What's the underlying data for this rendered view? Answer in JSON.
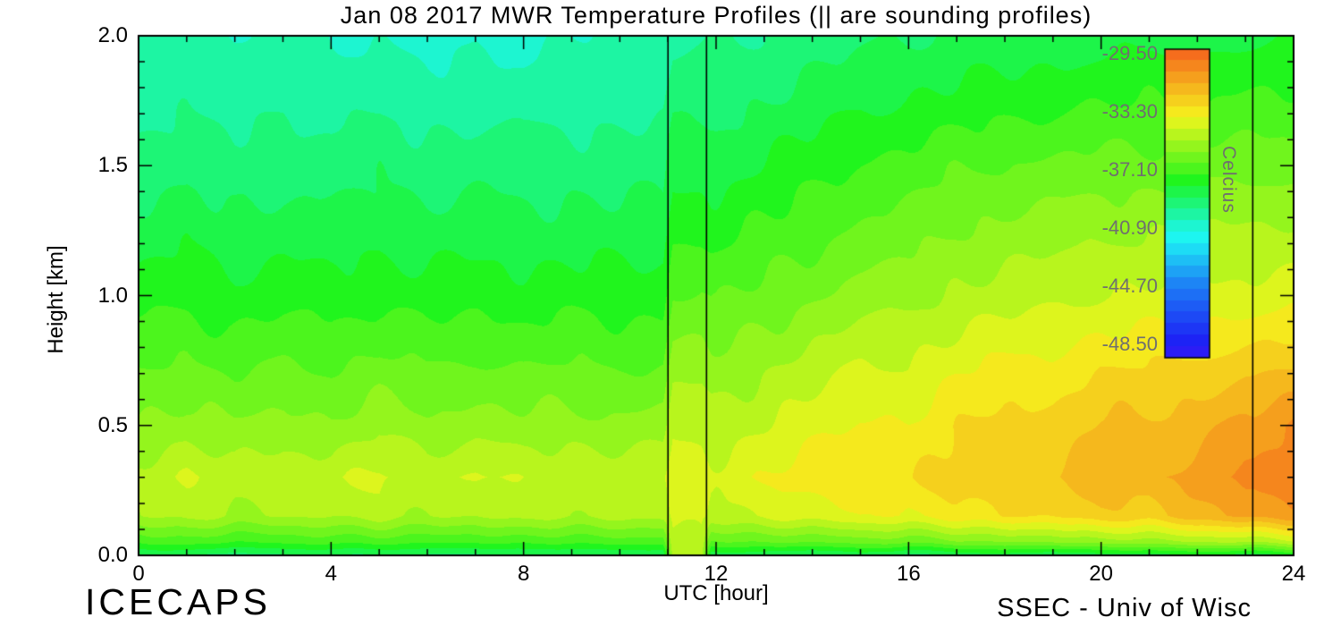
{
  "footer": {
    "left": "ICECAPS",
    "right": "SSEC - Univ of Wisc"
  },
  "colors": {
    "background": "#ffffff",
    "axis": "#000000",
    "text": "#000000",
    "colorbar_text": "#6f6f6f"
  },
  "chart_data": {
    "type": "heatmap",
    "title": "Jan 08 2017 MWR Temperature Profiles (|| are sounding profiles)",
    "xlabel": "UTC [hour]",
    "ylabel": "Height [km]",
    "xlim": [
      0,
      24
    ],
    "ylim": [
      0.0,
      2.0
    ],
    "x_major_ticks": [
      0,
      4,
      8,
      12,
      16,
      20,
      24
    ],
    "x_tick_labels": [
      "0",
      "4",
      "8",
      "12",
      "16",
      "20",
      "24"
    ],
    "x_minor_step": 1,
    "y_major_ticks": [
      0.0,
      0.5,
      1.0,
      1.5,
      2.0
    ],
    "y_tick_labels": [
      "0.0",
      "0.5",
      "1.0",
      "1.5",
      "2.0"
    ],
    "y_minor_step": 0.1,
    "grid_lines": "off",
    "sounding_lines_utc": [
      11.0,
      11.8,
      23.15
    ],
    "colorbar": {
      "label": "Celcius",
      "tick_labels": [
        "-29.50",
        "-33.30",
        "-37.10",
        "-40.90",
        "-44.70",
        "-48.50"
      ],
      "tick_values": [
        -29.5,
        -33.3,
        -37.1,
        -40.9,
        -44.7,
        -48.5
      ],
      "vmax": -29.2,
      "vmin": -49.4,
      "position": "inside-right"
    },
    "contour_step_c": 0.75,
    "colormap_stops": [
      [
        0,
        247
      ],
      [
        0.045,
        240
      ],
      [
        0.233,
        213
      ],
      [
        0.421,
        172
      ],
      [
        0.609,
        108
      ],
      [
        0.797,
        57
      ],
      [
        0.985,
        22
      ],
      [
        1,
        18
      ]
    ],
    "grid": {
      "hours": [
        0,
        1,
        2,
        3,
        4,
        5,
        6,
        7,
        8,
        9,
        10,
        10.9,
        11.1,
        11.4,
        11.7,
        11.9,
        12,
        13,
        14,
        15,
        16,
        17,
        18,
        19,
        20,
        21,
        22,
        23,
        23.2,
        24
      ],
      "heights_km": [
        0.0,
        0.05,
        0.15,
        0.3,
        0.5,
        0.75,
        1.0,
        1.25,
        1.5,
        1.75,
        2.0
      ],
      "temps_c": [
        [
          -39.0,
          -38.8,
          -39.2,
          -38.9,
          -39.1,
          -38.8,
          -39.0,
          -39.2,
          -38.8,
          -39.0,
          -38.9,
          -38.8,
          -34.8,
          -34.8,
          -34.8,
          -38.6,
          -38.6,
          -38.7,
          -39.0,
          -38.5,
          -39.3,
          -38.6,
          -38.4,
          -39.0,
          -38.3,
          -38.5,
          -38.2,
          -38.4,
          -38.4,
          -38.0
        ],
        [
          -37.3,
          -37.0,
          -37.4,
          -37.1,
          -37.3,
          -37.0,
          -37.2,
          -37.4,
          -37.0,
          -37.2,
          -37.1,
          -37.0,
          -34.5,
          -34.5,
          -34.5,
          -36.8,
          -36.8,
          -36.6,
          -36.6,
          -36.2,
          -36.6,
          -36.0,
          -35.8,
          -36.0,
          -35.4,
          -35.5,
          -35.2,
          -35.0,
          -35.0,
          -34.6
        ],
        [
          -35.2,
          -34.9,
          -35.3,
          -35.0,
          -35.2,
          -34.8,
          -35.1,
          -35.2,
          -34.8,
          -35.0,
          -35.0,
          -34.9,
          -34.2,
          -34.2,
          -34.2,
          -34.6,
          -34.6,
          -34.3,
          -34.0,
          -33.6,
          -33.8,
          -33.2,
          -32.8,
          -33.0,
          -32.3,
          -32.4,
          -31.8,
          -31.2,
          -31.2,
          -30.8
        ],
        [
          -34.8,
          -34.4,
          -34.8,
          -34.5,
          -34.7,
          -34.2,
          -34.6,
          -34.3,
          -34.6,
          -34.4,
          -34.6,
          -34.5,
          -34.0,
          -34.0,
          -34.0,
          -34.1,
          -34.1,
          -33.7,
          -33.3,
          -32.9,
          -33.1,
          -32.5,
          -32.1,
          -32.2,
          -31.6,
          -31.6,
          -31.1,
          -30.5,
          -30.5,
          -30.0
        ],
        [
          -35.8,
          -35.5,
          -35.9,
          -35.6,
          -35.8,
          -35.4,
          -35.7,
          -35.5,
          -35.7,
          -35.6,
          -35.7,
          -35.6,
          -34.6,
          -34.6,
          -34.6,
          -34.8,
          -34.8,
          -34.4,
          -34.0,
          -33.5,
          -33.6,
          -33.0,
          -32.6,
          -32.6,
          -32.1,
          -32.0,
          -31.7,
          -31.2,
          -31.2,
          -30.6
        ],
        [
          -36.8,
          -36.6,
          -36.9,
          -36.7,
          -36.8,
          -36.5,
          -36.8,
          -36.6,
          -36.8,
          -36.7,
          -36.8,
          -36.7,
          -35.6,
          -35.6,
          -35.6,
          -35.8,
          -35.8,
          -35.3,
          -34.9,
          -34.5,
          -34.4,
          -33.9,
          -33.6,
          -33.5,
          -33.1,
          -33.0,
          -32.8,
          -32.6,
          -32.6,
          -32.4
        ],
        [
          -37.8,
          -37.6,
          -37.9,
          -37.7,
          -37.8,
          -37.6,
          -37.8,
          -37.7,
          -37.8,
          -37.7,
          -37.8,
          -37.7,
          -36.6,
          -36.6,
          -36.6,
          -36.8,
          -36.8,
          -36.4,
          -36.0,
          -35.6,
          -35.4,
          -35.0,
          -34.8,
          -34.6,
          -34.4,
          -34.3,
          -34.2,
          -34.1,
          -34.1,
          -34.0
        ],
        [
          -38.6,
          -38.4,
          -38.7,
          -38.5,
          -38.6,
          -38.4,
          -38.6,
          -38.5,
          -38.6,
          -38.5,
          -38.6,
          -38.5,
          -37.6,
          -37.6,
          -37.6,
          -37.7,
          -37.7,
          -37.3,
          -36.9,
          -36.5,
          -36.3,
          -35.9,
          -35.7,
          -35.5,
          -35.3,
          -35.2,
          -35.1,
          -35.0,
          -35.0,
          -35.0
        ],
        [
          -39.3,
          -39.1,
          -39.4,
          -39.2,
          -39.3,
          -39.1,
          -39.3,
          -39.2,
          -39.3,
          -39.2,
          -39.3,
          -39.2,
          -38.4,
          -38.4,
          -38.4,
          -38.5,
          -38.5,
          -38.1,
          -37.7,
          -37.3,
          -37.1,
          -36.8,
          -36.6,
          -36.5,
          -36.4,
          -36.3,
          -36.3,
          -36.2,
          -36.2,
          -36.2
        ],
        [
          -39.9,
          -39.7,
          -40.0,
          -39.8,
          -39.9,
          -39.8,
          -40.0,
          -39.9,
          -40.0,
          -39.9,
          -39.9,
          -39.8,
          -39.2,
          -39.2,
          -39.2,
          -39.2,
          -39.2,
          -38.9,
          -38.6,
          -38.3,
          -38.1,
          -37.9,
          -37.7,
          -37.6,
          -37.5,
          -37.4,
          -37.4,
          -37.3,
          -37.3,
          -37.3
        ],
        [
          -40.3,
          -40.1,
          -40.4,
          -40.2,
          -40.4,
          -40.5,
          -40.8,
          -40.4,
          -40.8,
          -40.4,
          -40.3,
          -40.2,
          -39.8,
          -39.8,
          -39.8,
          -39.8,
          -39.8,
          -39.6,
          -39.3,
          -39.1,
          -38.9,
          -38.8,
          -38.7,
          -38.6,
          -38.5,
          -38.4,
          -38.4,
          -38.3,
          -38.3,
          -38.3
        ]
      ]
    }
  }
}
